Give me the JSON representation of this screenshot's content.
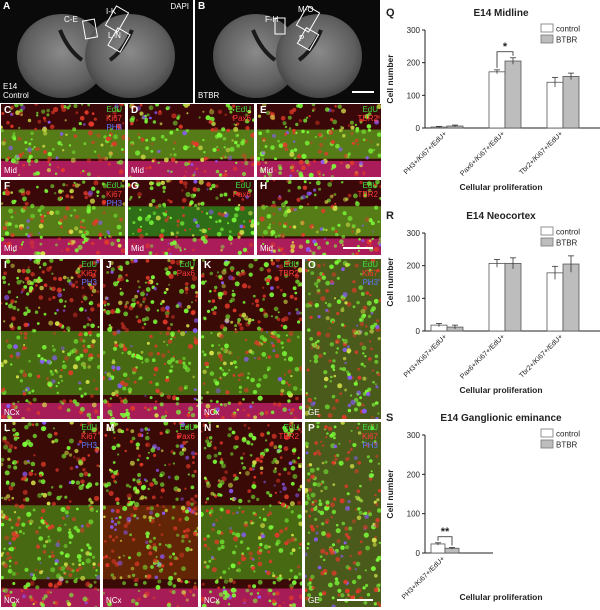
{
  "overview": {
    "A": {
      "letter": "A",
      "stain": "DAPI",
      "age": "E14",
      "group": "Control",
      "boxes": [
        "C-E",
        "I-K",
        "L-N"
      ]
    },
    "B": {
      "letter": "B",
      "group": "BTBR",
      "boxes": [
        "F-H",
        "M-O",
        "P"
      ]
    }
  },
  "micro_panels": [
    {
      "letter": "C",
      "stains": [
        "EdU",
        "Ki67",
        "PH3"
      ],
      "region": "Mid"
    },
    {
      "letter": "D",
      "stains": [
        "EdU",
        "Pax6"
      ],
      "region": "Mid"
    },
    {
      "letter": "E",
      "stains": [
        "EdU",
        "TBR2"
      ],
      "region": "Mid"
    },
    {
      "letter": "F",
      "stains": [
        "EdU",
        "Ki67",
        "PH3"
      ],
      "region": "Mid"
    },
    {
      "letter": "G",
      "stains": [
        "EdU",
        "Pax6"
      ],
      "region": "Mid"
    },
    {
      "letter": "H",
      "stains": [
        "EdU",
        "TBR2"
      ],
      "region": "Mid"
    },
    {
      "letter": "I",
      "stains": [
        "EdU",
        "Ki67",
        "PH3"
      ],
      "region": "NCx"
    },
    {
      "letter": "J",
      "stains": [
        "EdU",
        "Pax6"
      ],
      "region": ""
    },
    {
      "letter": "K",
      "stains": [
        "EdU",
        "TBR2"
      ],
      "region": "NCx"
    },
    {
      "letter": "O",
      "stains": [
        "EdU",
        "Ki67",
        "PH3"
      ],
      "region": "GE"
    },
    {
      "letter": "L",
      "stains": [
        "EdU",
        "Ki67",
        "PH3"
      ],
      "region": "NCx"
    },
    {
      "letter": "M",
      "stains": [
        "EdU",
        "Pax6"
      ],
      "region": "NCx"
    },
    {
      "letter": "N",
      "stains": [
        "EdU",
        "TBR2"
      ],
      "region": "NCx"
    },
    {
      "letter": "P",
      "stains": [
        "EdU",
        "Ki67",
        "PH3"
      ],
      "region": "GE"
    }
  ],
  "stain_colors": {
    "EdU": "#3fe03f",
    "Ki67": "#ff3b3b",
    "Pax6": "#ff3b3b",
    "TBR2": "#ff3b3b",
    "PH3": "#5a78ff"
  },
  "chart_data": [
    {
      "letter": "Q",
      "type": "bar",
      "title": "E14 Midline",
      "xlabel": "Cellular proliferation",
      "ylabel": "Cell number",
      "ylim": [
        0,
        300
      ],
      "yticks": [
        0,
        100,
        200,
        300
      ],
      "categories": [
        "PH3+/Ki67+/EdU+",
        "Pax6+/Ki67+/EdU+",
        "Tbr2+/Ki67+/EdU+"
      ],
      "series": [
        {
          "name": "control",
          "color": "#ffffff",
          "values": [
            3,
            172,
            140
          ],
          "errors": [
            2,
            6,
            15
          ]
        },
        {
          "name": "BTBR",
          "color": "#bdbdbd",
          "values": [
            6,
            205,
            158
          ],
          "errors": [
            3,
            10,
            10
          ]
        }
      ],
      "significance": [
        {
          "category": "Pax6+/Ki67+/EdU+",
          "label": "*"
        }
      ]
    },
    {
      "letter": "R",
      "type": "bar",
      "title": "E14 Neocortex",
      "xlabel": "Cellular proliferation",
      "ylabel": "Cell number",
      "ylim": [
        0,
        300
      ],
      "yticks": [
        0,
        100,
        200,
        300
      ],
      "categories": [
        "PH3+/Ki67+/EdU+",
        "Pax6+/Ki67+/EdU+",
        "Tbr2+/Ki67+/EdU+"
      ],
      "series": [
        {
          "name": "control",
          "color": "#ffffff",
          "values": [
            18,
            207,
            178
          ],
          "errors": [
            5,
            12,
            20
          ]
        },
        {
          "name": "BTBR",
          "color": "#bdbdbd",
          "values": [
            12,
            207,
            205
          ],
          "errors": [
            6,
            17,
            25
          ]
        }
      ],
      "significance": []
    },
    {
      "letter": "S",
      "type": "bar",
      "title": "E14 Ganglionic eminance",
      "xlabel": "Cellular proliferation",
      "ylabel": "Cell number",
      "ylim": [
        0,
        300
      ],
      "yticks": [
        0,
        100,
        200,
        300
      ],
      "categories": [
        "PH3+/Ki67+/EdU+"
      ],
      "series": [
        {
          "name": "control",
          "color": "#ffffff",
          "values": [
            23
          ],
          "errors": [
            3
          ]
        },
        {
          "name": "BTBR",
          "color": "#bdbdbd",
          "values": [
            12
          ],
          "errors": [
            2
          ]
        }
      ],
      "significance": [
        {
          "category": "PH3+/Ki67+/EdU+",
          "label": "**"
        }
      ]
    }
  ]
}
